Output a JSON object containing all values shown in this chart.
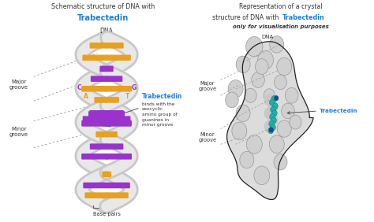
{
  "bg_color": "#ffffff",
  "title_left_line1": "Schematic structure of DNA with",
  "title_left_trab": "Trabectedin",
  "title_right_line1": "Representation of a crystal",
  "title_right_line2": "structure of DNA with ",
  "title_right_trab": "Trabectedin",
  "subtitle_right": "only for visualisation purposes",
  "dna_label": "DNA",
  "major_groove": "Major\ngroove",
  "minor_groove": "Minor\ngroove",
  "base_pairs": "Base pairs",
  "trab_color": "#1b7fe3",
  "helix_fill": "#e8e8e8",
  "helix_edge": "#c8c8c8",
  "helix_shadow": "#d0d0d0",
  "orange_color": "#e8a020",
  "purple_color": "#9933cc",
  "blue_rect_color": "#2255cc",
  "text_color": "#333333",
  "dash_color": "#999999",
  "blob_fill": "#e0e0e0",
  "blob_edge": "#222222",
  "blob_inner": "#cccccc",
  "teal_color": "#20b0a8",
  "navy_color": "#1a4a8a",
  "annotation_body": "binds with the\nexocyclic\namino group of\nguanines in\nminor groove"
}
